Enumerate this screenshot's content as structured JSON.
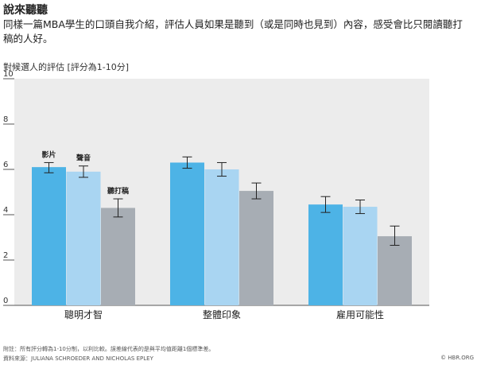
{
  "title": "說來聽聽",
  "subtitle": "同樣一篇MBA學生的口頭自我介紹，評估人員如果是聽到（或是同時也見到）內容，感受會比只閱讀聽打稿的人好。",
  "footer": {
    "note": "附註：所有評分轉為1-10分制，以利比較。誤差線代表的是與平均值距離1個標準差。",
    "source": "資料來源：JULIANA SCHROEDER AND NICHOLAS EPLEY",
    "copyright": "© HBR.ORG"
  },
  "chart_data": {
    "type": "bar",
    "ylabel": "對候選人的評估 [評分為1-10分]",
    "ylim": [
      0,
      10
    ],
    "yticks": [
      0,
      2,
      4,
      6,
      8,
      10
    ],
    "grid": false,
    "categories": [
      "聰明才智",
      "整體印象",
      "雇用可能性"
    ],
    "series": [
      {
        "name": "影片",
        "color": "#4db3e6",
        "values": [
          6.1,
          6.3,
          4.45
        ],
        "err_low": [
          5.85,
          6.05,
          4.1
        ],
        "err_high": [
          6.3,
          6.55,
          4.8
        ]
      },
      {
        "name": "聲音",
        "color": "#a9d5f2",
        "values": [
          5.9,
          6.0,
          4.35
        ],
        "err_low": [
          5.65,
          5.7,
          4.05
        ],
        "err_high": [
          6.15,
          6.3,
          4.65
        ]
      },
      {
        "name": "聽打稿",
        "color": "#a7adb4",
        "values": [
          4.3,
          5.05,
          3.05
        ],
        "err_low": [
          3.9,
          4.7,
          2.65
        ],
        "err_high": [
          4.7,
          5.4,
          3.5
        ]
      }
    ],
    "plot_background": "#ececec"
  }
}
